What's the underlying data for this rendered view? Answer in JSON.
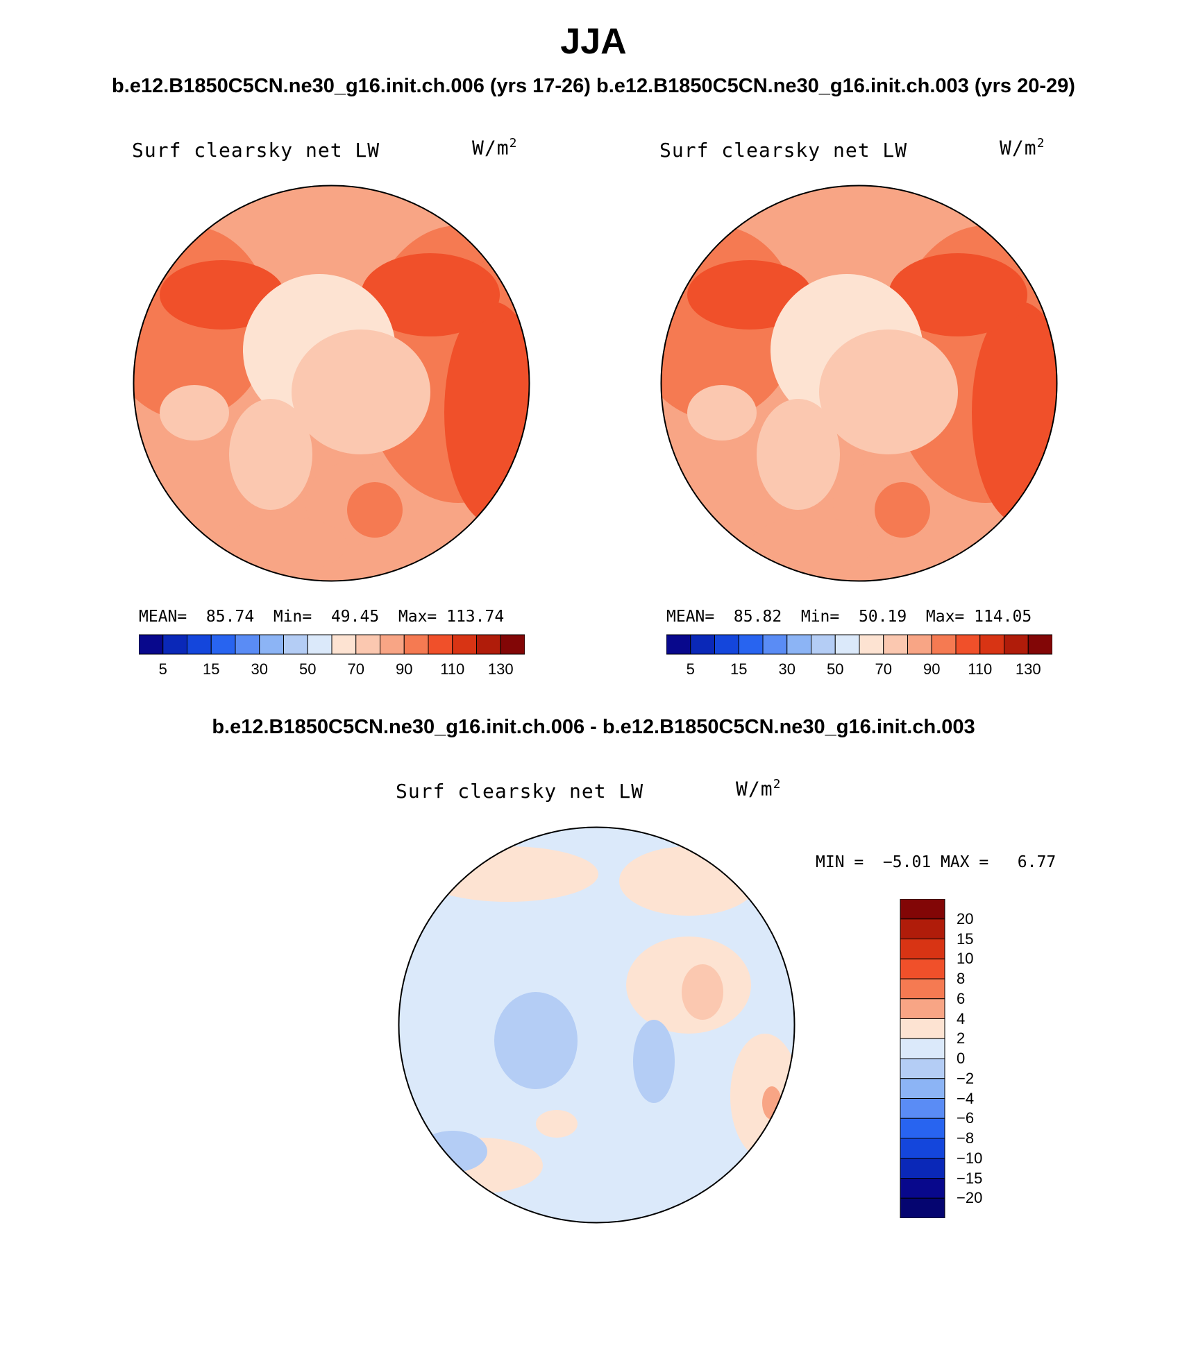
{
  "title": "JJA",
  "subtitle": "b.e12.B1850C5CN.ne30_g16.init.ch.006 (yrs 17-26) b.e12.B1850C5CN.ne30_g16.init.ch.003 (yrs 20-29)",
  "diff_title": "b.e12.B1850C5CN.ne30_g16.init.ch.006 - b.e12.B1850C5CN.ne30_g16.init.ch.003",
  "panels": [
    {
      "label": "Surf clearsky net LW",
      "units_base": "W/m",
      "units_sup": "2",
      "stats": "MEAN=  85.74  Min=  49.45  Max= 113.74"
    },
    {
      "label": "Surf clearsky net LW",
      "units_base": "W/m",
      "units_sup": "2",
      "stats": "MEAN=  85.82  Min=  50.19  Max= 114.05"
    },
    {
      "label": "Surf clearsky net LW",
      "units_base": "W/m",
      "units_sup": "2",
      "stats": "MIN =  −5.01 MAX =   6.77"
    }
  ],
  "colorbar_abs": {
    "colors": [
      "#08088c",
      "#0a28b8",
      "#1446dc",
      "#2864f0",
      "#5a8cf5",
      "#8cb4f5",
      "#b4cdf5",
      "#dbe9fa",
      "#fde3d2",
      "#fbc8b0",
      "#f8a585",
      "#f57a52",
      "#f0502a",
      "#d83414",
      "#b01c0a",
      "#820606"
    ],
    "tick_labels": [
      "5",
      "15",
      "30",
      "50",
      "70",
      "90",
      "110",
      "130"
    ]
  },
  "colorbar_diff": {
    "colors": [
      "#820606",
      "#b01c0a",
      "#d83414",
      "#f0502a",
      "#f57a52",
      "#f8a585",
      "#fde3d2",
      "#dbe9fa",
      "#b4cdf5",
      "#8cb4f5",
      "#5a8cf5",
      "#2864f0",
      "#1446dc",
      "#0a28b8",
      "#08088c",
      "#050570"
    ],
    "tick_labels": [
      "20",
      "15",
      "10",
      "8",
      "6",
      "4",
      "2",
      "0",
      "−2",
      "−4",
      "−6",
      "−8",
      "−10",
      "−15",
      "−20"
    ]
  },
  "chart_data": [
    {
      "type": "heatmap",
      "projection": "north polar stereographic",
      "title": "Surf clearsky net LW",
      "units": "W/m2",
      "stats": {
        "mean": 85.74,
        "min": 49.45,
        "max": 113.74
      },
      "levels": [
        5,
        10,
        15,
        20,
        30,
        40,
        50,
        60,
        70,
        80,
        90,
        100,
        110,
        120,
        130
      ]
    },
    {
      "type": "heatmap",
      "projection": "north polar stereographic",
      "title": "Surf clearsky net LW",
      "units": "W/m2",
      "stats": {
        "mean": 85.82,
        "min": 50.19,
        "max": 114.05
      },
      "levels": [
        5,
        10,
        15,
        20,
        30,
        40,
        50,
        60,
        70,
        80,
        90,
        100,
        110,
        120,
        130
      ]
    },
    {
      "type": "heatmap",
      "projection": "north polar stereographic",
      "title": "Surf clearsky net LW",
      "units": "W/m2",
      "stats": {
        "min": -5.01,
        "max": 6.77
      },
      "levels": [
        -20,
        -15,
        -10,
        -8,
        -6,
        -4,
        -2,
        0,
        2,
        4,
        6,
        8,
        10,
        15,
        20
      ]
    }
  ]
}
